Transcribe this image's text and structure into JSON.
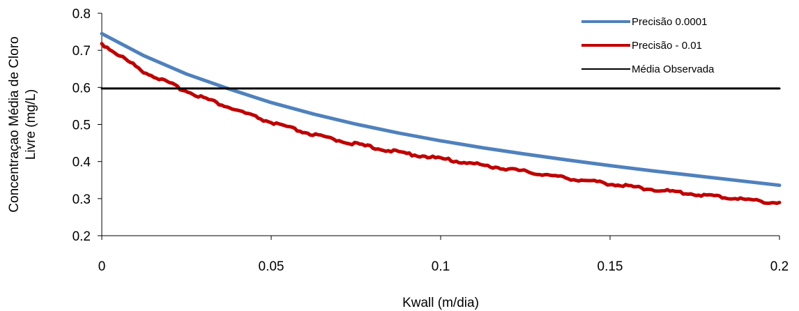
{
  "chart_data": {
    "type": "line",
    "xlabel": "Kwall (m/dia)",
    "ylabel_lines": [
      "Concentraçao Média de Cloro",
      "Livre (mg/L)"
    ],
    "xlim": [
      0,
      0.2
    ],
    "ylim": [
      0.2,
      0.8
    ],
    "x_ticks": [
      0,
      0.05,
      0.1,
      0.15,
      0.2
    ],
    "x_tick_labels": [
      "0",
      "0.05",
      "0.1",
      "0.15",
      "0.2"
    ],
    "y_ticks": [
      0.2,
      0.3,
      0.4,
      0.5,
      0.6,
      0.7,
      0.8
    ],
    "y_tick_labels": [
      "0.2",
      "0.3",
      "0.4",
      "0.5",
      "0.6",
      "0.7",
      "0.8"
    ],
    "grid": false,
    "legend_position": "top-right",
    "series": [
      {
        "name": "Precisão 0.0001",
        "color": "#4f81bd",
        "x": [
          0,
          0.0125,
          0.025,
          0.0375,
          0.05,
          0.0625,
          0.075,
          0.0875,
          0.1,
          0.1125,
          0.125,
          0.1375,
          0.15,
          0.1625,
          0.175,
          0.1875,
          0.2
        ],
        "y": [
          0.745,
          0.685,
          0.636,
          0.596,
          0.559,
          0.528,
          0.501,
          0.477,
          0.456,
          0.437,
          0.42,
          0.404,
          0.389,
          0.375,
          0.362,
          0.349,
          0.336
        ]
      },
      {
        "name": "Precisão - 0.01",
        "color": "#c00000",
        "x": [
          0,
          0.0125,
          0.025,
          0.0375,
          0.05,
          0.0625,
          0.075,
          0.0875,
          0.1,
          0.1125,
          0.125,
          0.1375,
          0.15,
          0.1625,
          0.175,
          0.1875,
          0.2
        ],
        "y": [
          0.718,
          0.642,
          0.59,
          0.546,
          0.505,
          0.472,
          0.447,
          0.425,
          0.408,
          0.39,
          0.373,
          0.355,
          0.34,
          0.325,
          0.312,
          0.3,
          0.288
        ]
      },
      {
        "name": "Média Observada",
        "color": "#000000",
        "x": [
          0,
          0.2
        ],
        "y": [
          0.597,
          0.597
        ]
      }
    ]
  }
}
